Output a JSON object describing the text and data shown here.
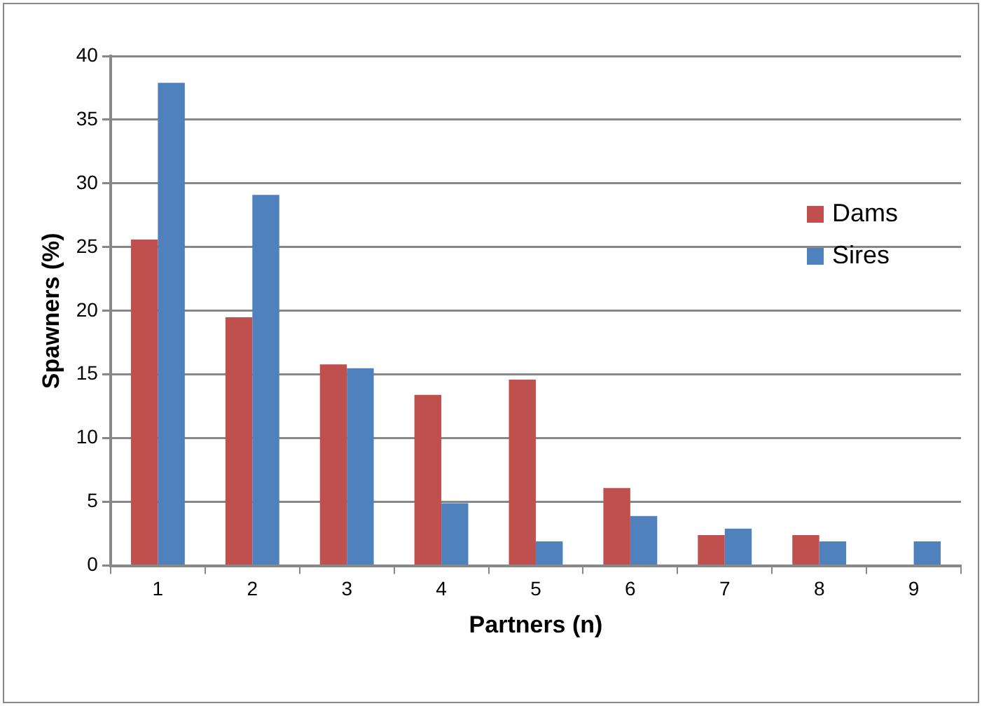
{
  "chart_data": {
    "type": "bar",
    "xlabel": "Partners (n)",
    "ylabel": "Spawners (%)",
    "categories": [
      "1",
      "2",
      "3",
      "4",
      "5",
      "6",
      "7",
      "8",
      "9"
    ],
    "series": [
      {
        "name": "Dams",
        "color": "#c0504d",
        "values": [
          25.6,
          19.5,
          15.8,
          13.4,
          14.6,
          6.1,
          2.4,
          2.4,
          0
        ]
      },
      {
        "name": "Sires",
        "color": "#4f81bd",
        "values": [
          37.9,
          29.1,
          15.5,
          4.9,
          1.9,
          3.9,
          2.9,
          1.9,
          1.9
        ]
      }
    ],
    "ylim": [
      0,
      40
    ],
    "yticks": [
      0,
      5,
      10,
      15,
      20,
      25,
      30,
      35,
      40
    ],
    "grid": "y",
    "legend": "top right"
  }
}
